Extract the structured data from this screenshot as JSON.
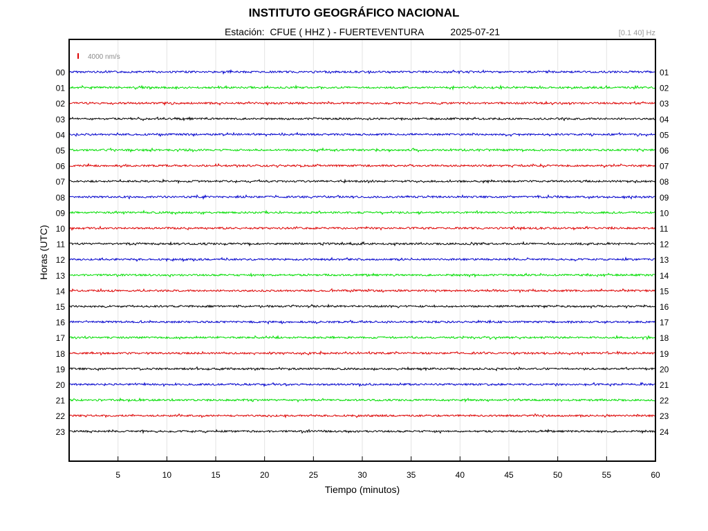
{
  "chart_data": {
    "type": "line",
    "title": "INSTITUTO GEOGRÁFICO NACIONAL",
    "subtitle": "Estación:  CFUE ( HHZ ) - FUERTEVENTURA          2025-07-21",
    "filter_band": "[0.1 40] Hz",
    "scale_label": "4000 nm/s",
    "xlabel": "Tiempo (minutos)",
    "ylabel": "Horas (UTC)",
    "xlim": [
      0,
      60
    ],
    "x_ticks": [
      "5",
      "10",
      "15",
      "20",
      "25",
      "30",
      "35",
      "40",
      "45",
      "50",
      "55",
      "60"
    ],
    "left_hour_labels": [
      "00",
      "01",
      "02",
      "03",
      "04",
      "05",
      "06",
      "07",
      "08",
      "09",
      "10",
      "11",
      "12",
      "13",
      "14",
      "15",
      "16",
      "17",
      "18",
      "19",
      "20",
      "21",
      "22",
      "23"
    ],
    "right_hour_labels": [
      "01",
      "02",
      "03",
      "04",
      "05",
      "06",
      "07",
      "08",
      "09",
      "10",
      "11",
      "12",
      "13",
      "14",
      "15",
      "16",
      "17",
      "18",
      "19",
      "20",
      "21",
      "22",
      "23",
      "24"
    ],
    "series_colors": [
      "#0000cc",
      "#00dd00",
      "#dd0000",
      "#000000"
    ],
    "grid": true
  }
}
